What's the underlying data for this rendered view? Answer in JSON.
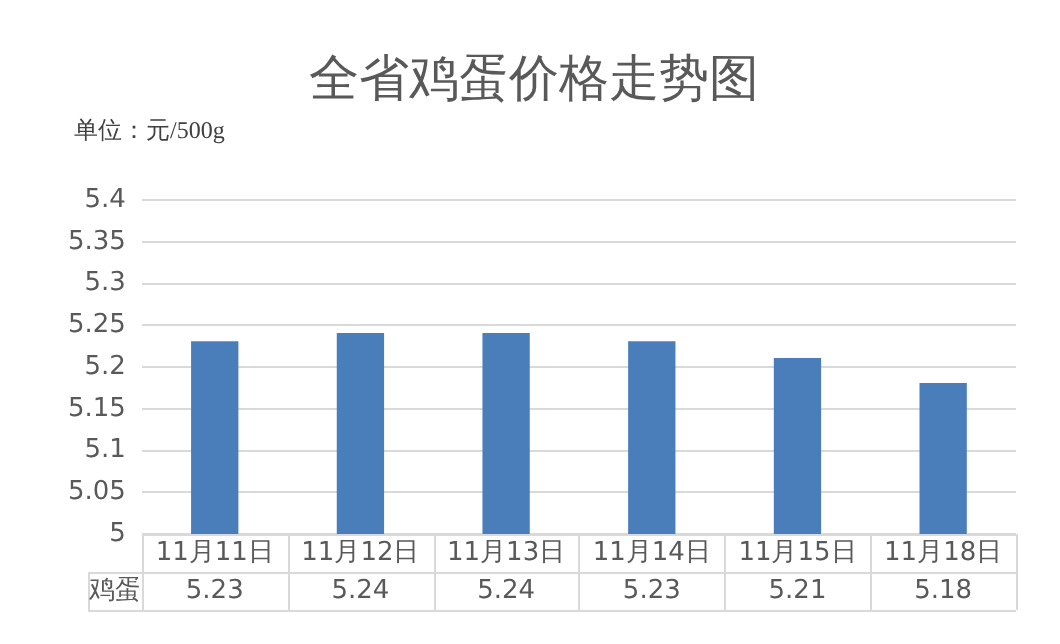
{
  "chart_data": {
    "type": "bar",
    "title": "全省鸡蛋价格走势图",
    "ylabel": "单位：元/500g",
    "categories": [
      "11月11日",
      "11月12日",
      "11月13日",
      "11月14日",
      "11月15日",
      "11月18日"
    ],
    "series": [
      {
        "name": "鸡蛋",
        "color": "#4a7ebb",
        "values": [
          5.23,
          5.24,
          5.24,
          5.23,
          5.21,
          5.18
        ]
      }
    ],
    "ylim": [
      5,
      5.4
    ],
    "yticks": [
      5,
      5.05,
      5.1,
      5.15,
      5.2,
      5.25,
      5.3,
      5.35,
      5.4
    ],
    "grid": "y",
    "legend": false,
    "data_labels": true
  }
}
